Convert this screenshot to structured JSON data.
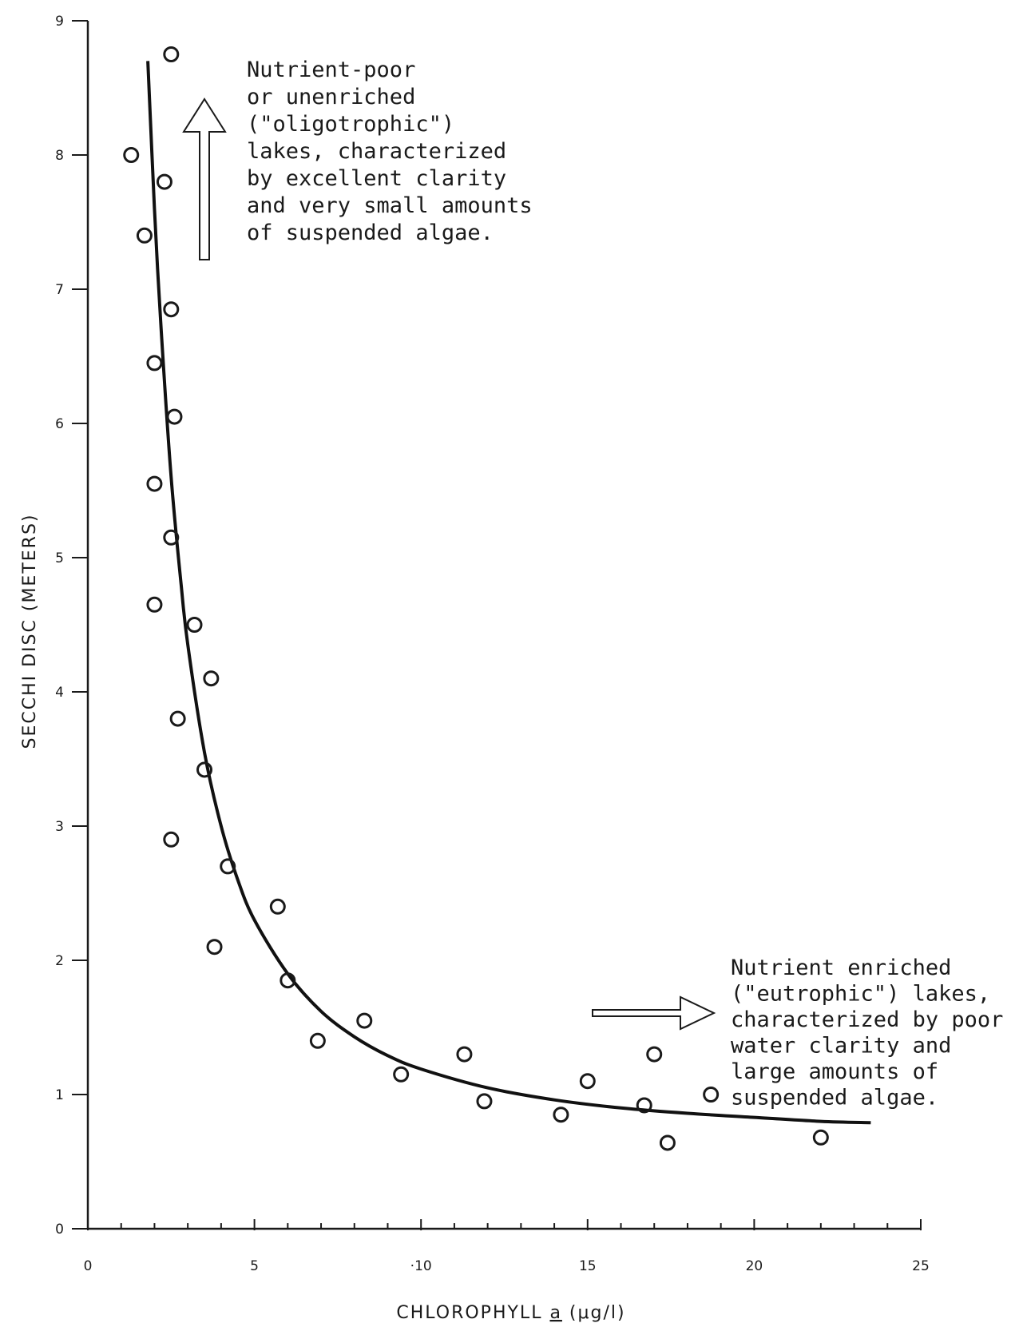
{
  "chart_data": {
    "type": "scatter",
    "xlabel_main": "CHLOROPHYLL ",
    "xlabel_symbol": "a",
    "xlabel_unit": " (μg/l)",
    "ylabel": "SECCHI DISC (METERS)",
    "xlim": [
      0,
      25
    ],
    "ylim": [
      0,
      9
    ],
    "x_ticks": [
      0,
      5,
      10,
      15,
      20,
      25
    ],
    "x_tick_labels": [
      "0",
      "5",
      "·10",
      "15",
      "20",
      "25"
    ],
    "y_ticks": [
      0,
      1,
      2,
      3,
      4,
      5,
      6,
      7,
      8,
      9
    ],
    "y_tick_labels": [
      "0",
      "1",
      "2",
      "3",
      "4",
      "5",
      "6",
      "7",
      "8",
      "9"
    ],
    "grid": false,
    "legend": "none",
    "series": [
      {
        "kind": "points",
        "x": [
          2.5,
          1.3,
          2.3,
          1.7,
          2.5,
          2.0,
          2.6,
          2.0,
          2.5,
          2.0,
          3.2,
          3.7,
          2.7,
          3.5,
          2.5,
          4.2,
          5.7,
          3.8,
          6.0,
          6.9,
          8.3,
          9.4,
          11.3,
          11.9,
          14.2,
          15.0,
          16.7,
          17.0,
          17.4,
          18.7,
          22.0
        ],
        "y": [
          8.75,
          8.0,
          7.8,
          7.4,
          6.85,
          6.45,
          6.05,
          5.55,
          5.15,
          4.65,
          4.5,
          4.1,
          3.8,
          3.42,
          2.9,
          2.7,
          2.4,
          2.1,
          1.85,
          1.4,
          1.55,
          1.15,
          1.3,
          0.95,
          0.85,
          1.1,
          0.92,
          1.3,
          0.64,
          1.0,
          0.68
        ]
      },
      {
        "kind": "fit-curve",
        "x": [
          1.8,
          2.0,
          2.2,
          2.5,
          2.8,
          3.0,
          3.5,
          4.0,
          4.5,
          5.0,
          6.0,
          7.0,
          8.0,
          9.0,
          10.0,
          12.0,
          14.0,
          16.0,
          18.0,
          20.0,
          22.0,
          23.5
        ],
        "y": [
          8.7,
          7.6,
          6.7,
          5.6,
          4.8,
          4.35,
          3.55,
          3.0,
          2.6,
          2.3,
          1.9,
          1.62,
          1.43,
          1.29,
          1.19,
          1.05,
          0.96,
          0.9,
          0.86,
          0.83,
          0.8,
          0.79
        ]
      }
    ],
    "annotations": {
      "oligotrophic": [
        "Nutrient-poor",
        "or unenriched",
        "(\"oligotrophic\")",
        "lakes, characterized",
        "by excellent clarity",
        "and very small amounts",
        "of suspended algae."
      ],
      "eutrophic": [
        "Nutrient enriched",
        "(\"eutrophic\") lakes,",
        "characterized by poor",
        "water clarity and",
        "large amounts of",
        "suspended algae."
      ]
    }
  }
}
